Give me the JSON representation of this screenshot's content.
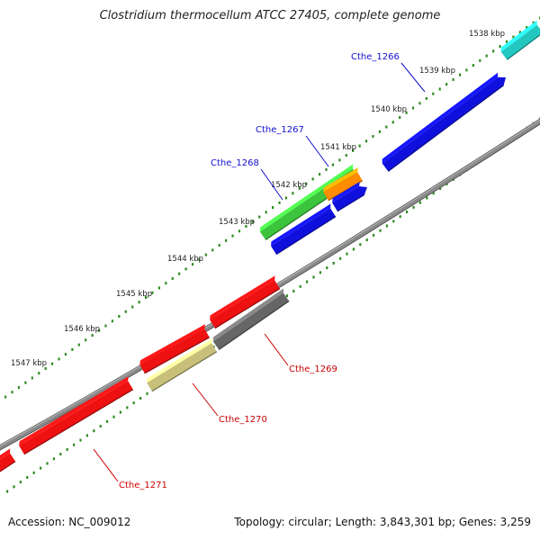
{
  "title": "Clostridium thermocellum ATCC 27405, complete genome",
  "accession": "Accession: NC_009012",
  "summary": "Topology: circular; Length: 3,843,301 bp; Genes: 3,259",
  "colors": {
    "backbone": "#8a8a8a",
    "tick": "#2e8b20",
    "forward_label": "#1010cc",
    "reverse_label": "#cc0000",
    "leader": "#1010cc",
    "leader_reverse": "#cc0000"
  },
  "ticks": [
    "1538 kbp",
    "1539 kbp",
    "1540 kbp",
    "1541 kbp",
    "1542 kbp",
    "1543 kbp",
    "1544 kbp",
    "1545 kbp",
    "1546 kbp",
    "1547 kbp"
  ],
  "genes_labeled": [
    {
      "name": "Cthe_1266",
      "strand": "forward"
    },
    {
      "name": "Cthe_1267",
      "strand": "forward"
    },
    {
      "name": "Cthe_1268",
      "strand": "forward"
    },
    {
      "name": "Cthe_1269",
      "strand": "reverse"
    },
    {
      "name": "Cthe_1270",
      "strand": "reverse"
    },
    {
      "name": "Cthe_1271",
      "strand": "reverse"
    }
  ],
  "feature_colors": {
    "cyan": "#22c8c0",
    "blue": "#1010dd",
    "green": "#3cc43c",
    "orange": "#ff8c00",
    "red": "#ee1111",
    "gray": "#666666",
    "khaki": "#c8c07a"
  }
}
